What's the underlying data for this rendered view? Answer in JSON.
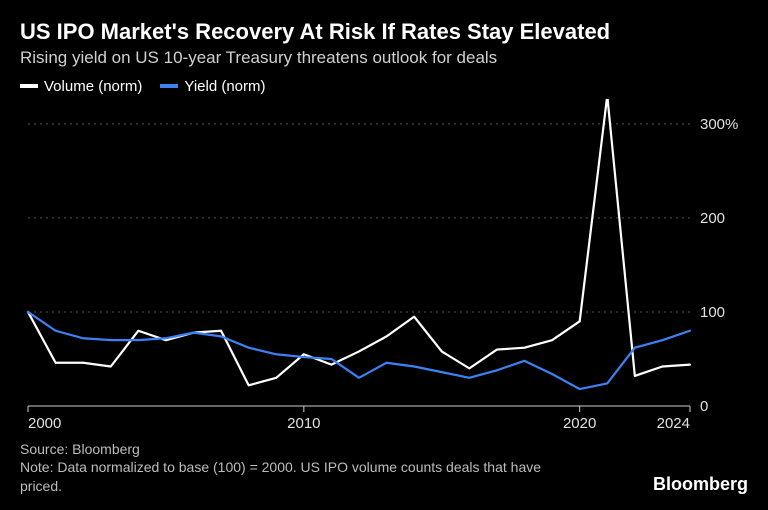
{
  "title": "US IPO Market's Recovery At Risk If Rates Stay Elevated",
  "subtitle": "Rising yield on US 10-year Treasury threatens outlook for deals",
  "legend": {
    "volume": "Volume (norm)",
    "yield": "Yield (norm)"
  },
  "footer": {
    "source": "Source: Bloomberg",
    "note": "Note: Data normalized to base (100) = 2000. US IPO volume counts deals that have priced.",
    "brand": "Bloomberg"
  },
  "chart": {
    "type": "line",
    "background_color": "#000000",
    "grid_color": "#555555",
    "axis_color": "#cccccc",
    "axis_fontsize": 15,
    "x": {
      "min": 2000,
      "max": 2024,
      "ticks": [
        2000,
        2010,
        2020,
        2024
      ]
    },
    "y": {
      "min": 0,
      "max": 320,
      "ticks": [
        0,
        100,
        200,
        300
      ],
      "tick_labels": [
        "0",
        "100",
        "200",
        "300%"
      ]
    },
    "series": [
      {
        "name": "Volume (norm)",
        "color": "#ffffff",
        "line_width": 2.2,
        "years": [
          2000,
          2001,
          2002,
          2003,
          2004,
          2005,
          2006,
          2007,
          2008,
          2009,
          2010,
          2011,
          2012,
          2013,
          2014,
          2015,
          2016,
          2017,
          2018,
          2019,
          2020,
          2021,
          2022,
          2023,
          2024
        ],
        "values": [
          100,
          46,
          46,
          42,
          80,
          70,
          78,
          80,
          22,
          30,
          55,
          44,
          58,
          74,
          95,
          58,
          40,
          60,
          62,
          70,
          90,
          330,
          32,
          42,
          44
        ]
      },
      {
        "name": "Yield (norm)",
        "color": "#3b82f6",
        "line_width": 2.2,
        "years": [
          2000,
          2001,
          2002,
          2003,
          2004,
          2005,
          2006,
          2007,
          2008,
          2009,
          2010,
          2011,
          2012,
          2013,
          2014,
          2015,
          2016,
          2017,
          2018,
          2019,
          2020,
          2021,
          2022,
          2023,
          2024
        ],
        "values": [
          100,
          80,
          72,
          70,
          70,
          72,
          78,
          74,
          62,
          55,
          52,
          50,
          30,
          46,
          42,
          36,
          30,
          38,
          48,
          34,
          18,
          24,
          62,
          70,
          80
        ]
      }
    ]
  }
}
